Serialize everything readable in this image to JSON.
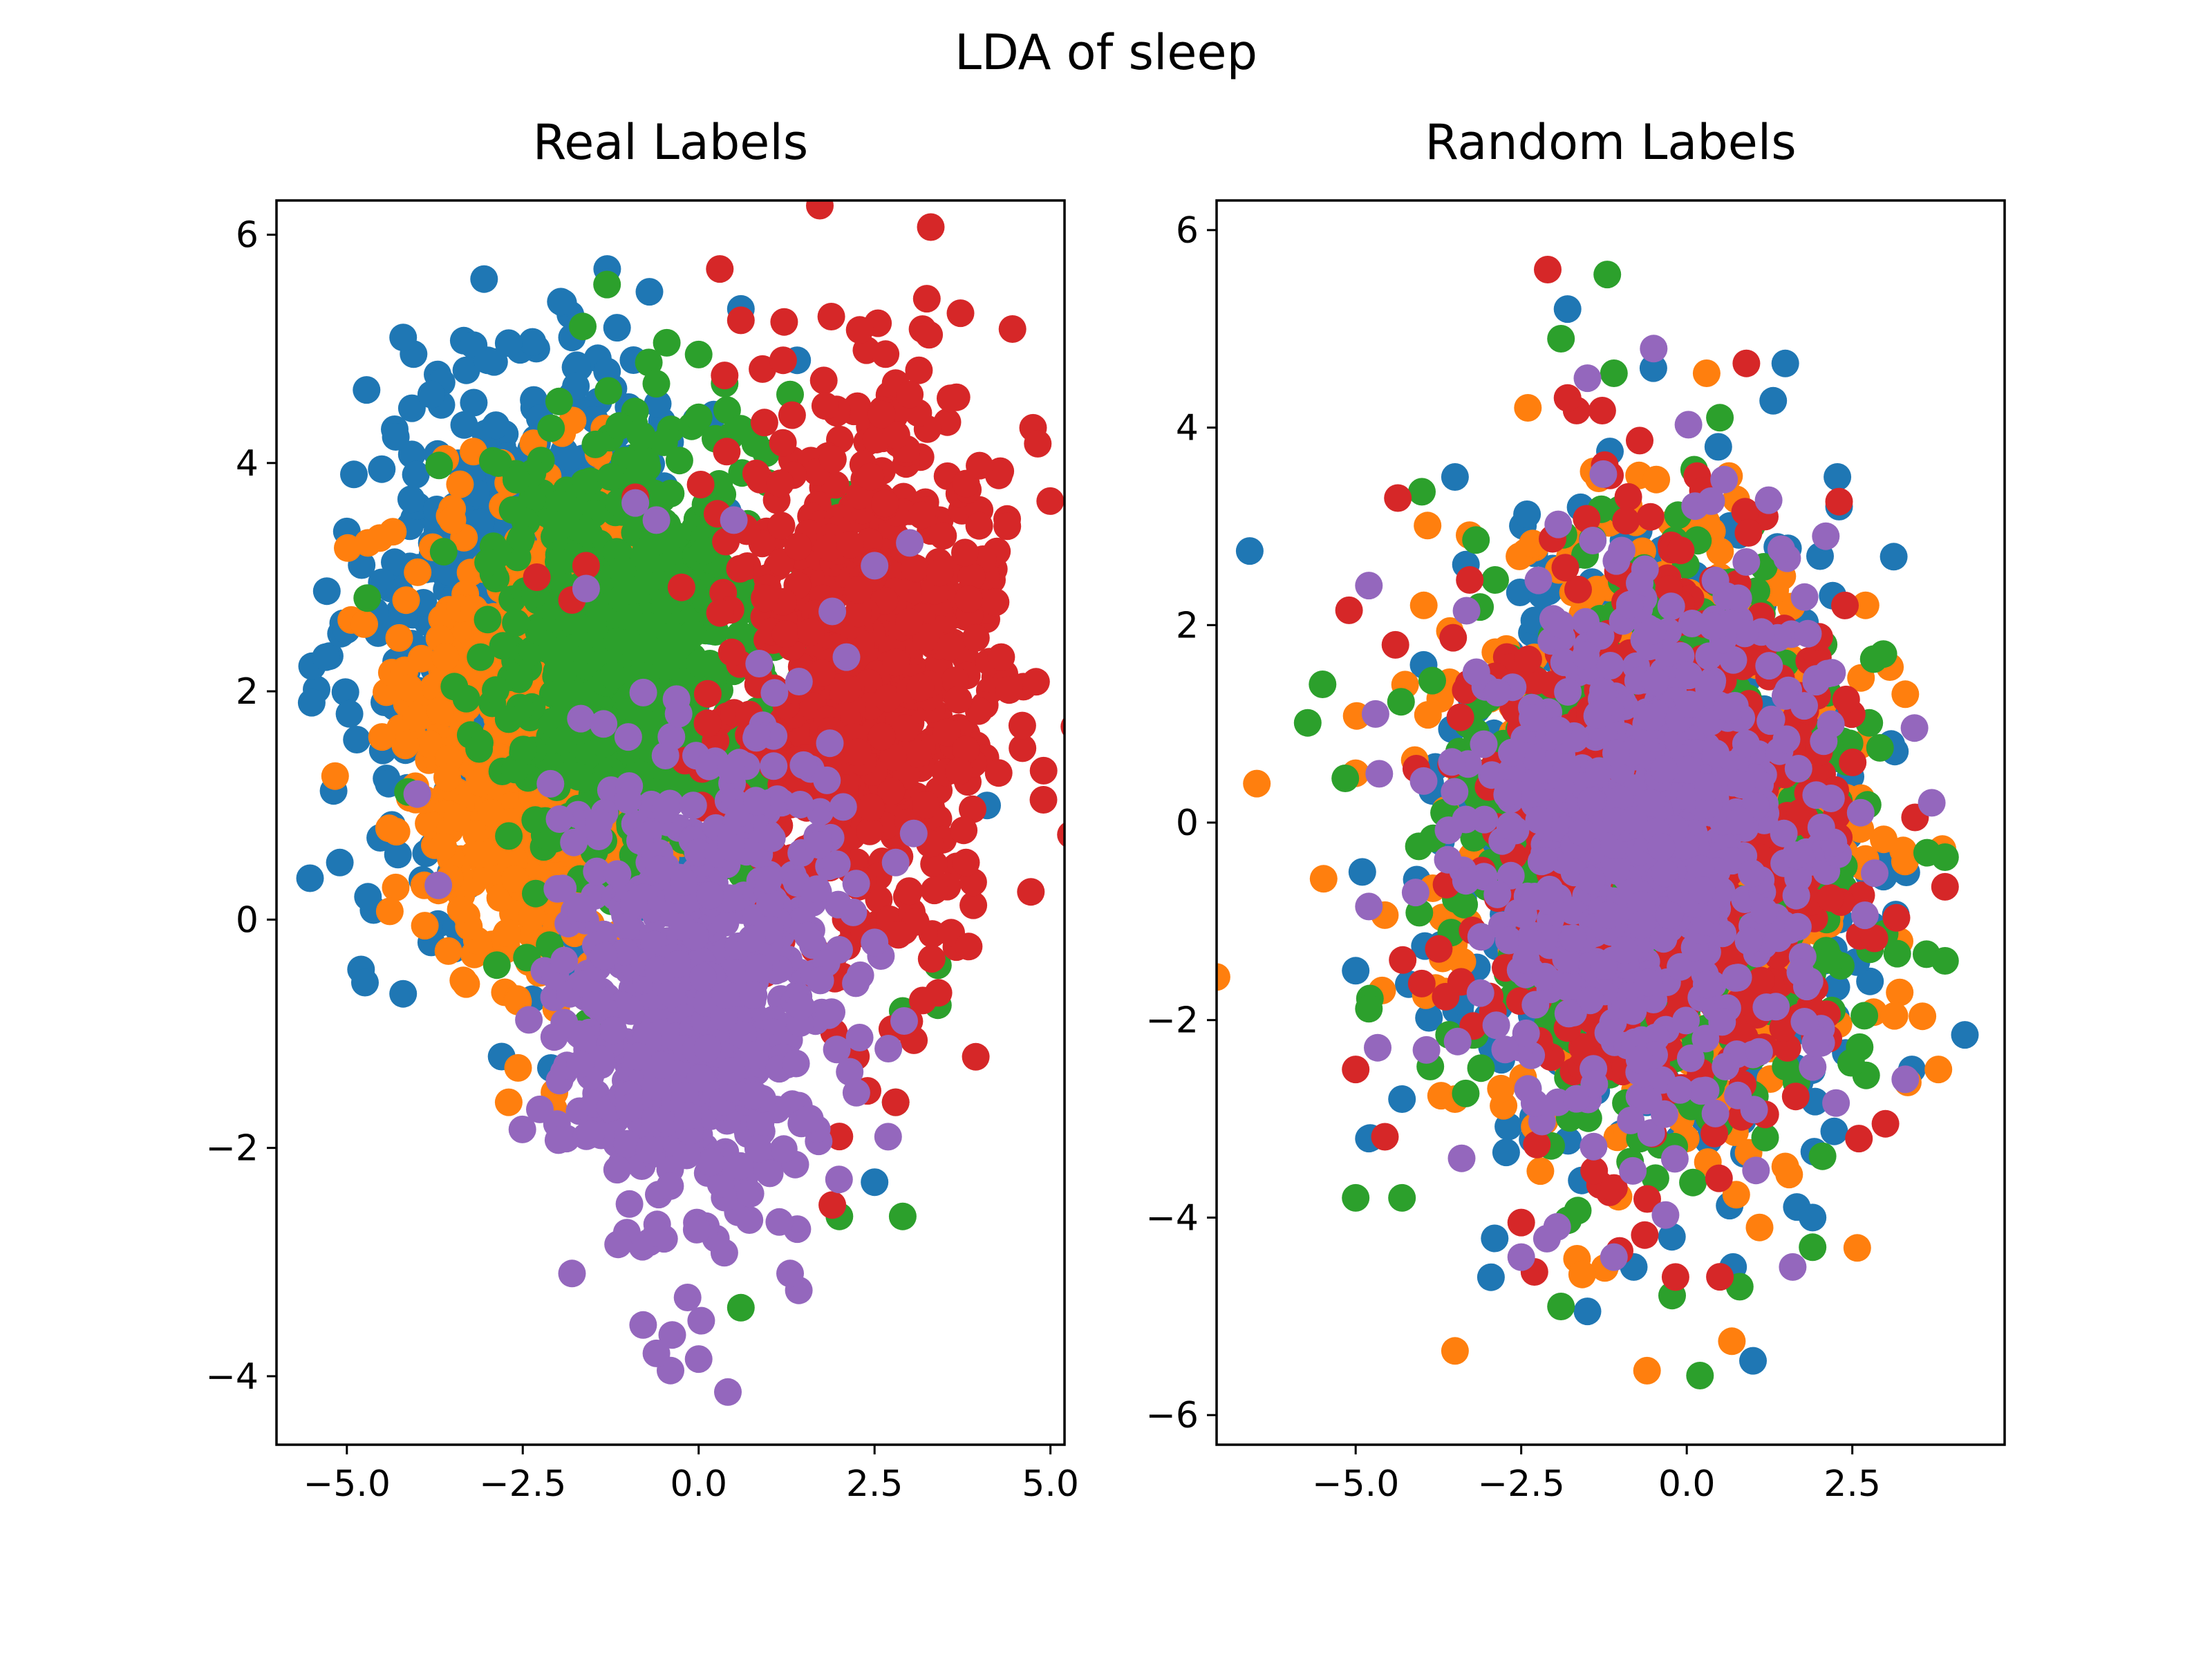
{
  "figure": {
    "suptitle": "LDA of sleep",
    "colors": [
      "#1f77b4",
      "#ff7f0e",
      "#2ca02c",
      "#d62728",
      "#9467bd"
    ]
  },
  "chart_data": [
    {
      "type": "scatter",
      "title": "Real Labels",
      "xlabel": "",
      "ylabel": "",
      "xlim": [
        -6.0,
        5.2
      ],
      "ylim": [
        -4.6,
        6.3
      ],
      "xticks": [
        -5.0,
        -2.5,
        0.0,
        2.5,
        5.0
      ],
      "xtick_labels": [
        "−5.0",
        "−2.5",
        "0.0",
        "2.5",
        "5.0"
      ],
      "yticks": [
        -4,
        -2,
        0,
        2,
        4,
        6
      ],
      "ytick_labels": [
        "−4",
        "−2",
        "0",
        "2",
        "4",
        "6"
      ],
      "grid": false,
      "legend": "none",
      "series": [
        {
          "color": "#1f77b4",
          "cluster": {
            "cx": -2.4,
            "cy": 2.6,
            "sx": 1.2,
            "sy": 1.1
          },
          "points": [
            [
              -1.3,
              5.7
            ],
            [
              -4.2,
              5.1
            ],
            [
              -0.7,
              5.5
            ],
            [
              -5.5,
              1.9
            ],
            [
              -4.2,
              -0.65
            ],
            [
              0.6,
              5.35
            ],
            [
              -3.0,
              4.9
            ],
            [
              -2.7,
              5.05
            ],
            [
              -1.8,
              5.1
            ],
            [
              -5.0,
              3.4
            ],
            [
              -4.6,
              2.7
            ],
            [
              -3.4,
              1.5
            ],
            [
              2.5,
              -2.3
            ],
            [
              4.1,
              1.0
            ],
            [
              -2.1,
              -1.3
            ],
            [
              -2.3,
              -0.1
            ],
            [
              1.4,
              4.9
            ],
            [
              -4.9,
              3.9
            ],
            [
              -3.8,
              4.6
            ],
            [
              -5.3,
              2.3
            ],
            [
              -5.1,
              0.5
            ],
            [
              -4.7,
              0.2
            ],
            [
              -3.8,
              -0.2
            ],
            [
              -2.8,
              -1.2
            ]
          ]
        },
        {
          "color": "#ff7f0e",
          "cluster": {
            "cx": -2.3,
            "cy": 1.7,
            "sx": 0.9,
            "sy": 1.0
          },
          "points": [
            [
              -4.7,
              3.3
            ],
            [
              -3.2,
              4.1
            ],
            [
              -2.8,
              4.0
            ],
            [
              -3.5,
              3.5
            ],
            [
              -4.4,
              0.8
            ],
            [
              -4.5,
              1.6
            ],
            [
              -2.7,
              -1.6
            ],
            [
              -3.9,
              0.3
            ],
            [
              -3.1,
              1.2
            ],
            [
              -2.3,
              3.2
            ],
            [
              -3.6,
              2.3
            ]
          ]
        },
        {
          "color": "#2ca02c",
          "cluster": {
            "cx": -1.0,
            "cy": 2.3,
            "sx": 1.0,
            "sy": 1.0
          },
          "points": [
            [
              0.0,
              4.95
            ],
            [
              0.0,
              4.4
            ],
            [
              0.6,
              4.3
            ],
            [
              1.3,
              4.6
            ],
            [
              2.9,
              -0.8
            ],
            [
              3.4,
              -0.4
            ],
            [
              3.4,
              -0.75
            ],
            [
              2.9,
              -2.6
            ],
            [
              2.0,
              -2.6
            ],
            [
              0.6,
              -3.4
            ],
            [
              2.0,
              3.7
            ],
            [
              -2.6,
              2.6
            ],
            [
              -1.6,
              3.4
            ],
            [
              -3.1,
              2.3
            ],
            [
              2.8,
              -1.6
            ]
          ]
        },
        {
          "color": "#d62728",
          "cluster": {
            "cx": 2.4,
            "cy": 2.2,
            "sx": 1.0,
            "sy": 1.3
          },
          "points": [
            [
              0.3,
              5.7
            ],
            [
              0.6,
              5.25
            ],
            [
              1.2,
              4.9
            ],
            [
              2.8,
              4.7
            ],
            [
              3.0,
              4.6
            ],
            [
              4.3,
              2.3
            ],
            [
              4.6,
              1.7
            ],
            [
              4.9,
              1.05
            ],
            [
              3.8,
              0.5
            ],
            [
              2.8,
              -1.6
            ],
            [
              2.0,
              -1.9
            ],
            [
              2.4,
              -1.5
            ],
            [
              1.9,
              -2.5
            ],
            [
              3.7,
              1.3
            ],
            [
              1.8,
              4.5
            ],
            [
              -1.8,
              2.8
            ],
            [
              -2.3,
              3.0
            ],
            [
              -1.6,
              3.1
            ],
            [
              -0.9,
              3.7
            ],
            [
              0.4,
              4.1
            ]
          ]
        },
        {
          "color": "#9467bd",
          "cluster": {
            "cx": 0.0,
            "cy": -0.7,
            "sx": 1.0,
            "sy": 1.0
          },
          "points": [
            [
              -0.4,
              -3.95
            ],
            [
              0.0,
              -3.85
            ],
            [
              -0.6,
              -3.8
            ],
            [
              1.3,
              -3.1
            ],
            [
              -1.8,
              -3.1
            ],
            [
              -1.6,
              2.9
            ],
            [
              -0.6,
              3.5
            ],
            [
              0.5,
              3.5
            ],
            [
              2.5,
              3.1
            ],
            [
              3.0,
              3.3
            ],
            [
              1.9,
              2.7
            ],
            [
              -4.0,
              1.1
            ],
            [
              -3.7,
              0.3
            ],
            [
              -1.0,
              1.6
            ],
            [
              2.5,
              -0.2
            ],
            [
              2.8,
              0.5
            ],
            [
              -0.9,
              3.65
            ],
            [
              2.1,
              2.3
            ]
          ]
        }
      ]
    },
    {
      "type": "scatter",
      "title": "Random Labels",
      "xlabel": "",
      "ylabel": "",
      "xlim": [
        -7.1,
        4.8
      ],
      "ylim": [
        -6.3,
        6.3
      ],
      "xticks": [
        -5.0,
        -2.5,
        0.0,
        2.5
      ],
      "xtick_labels": [
        "−5.0",
        "−2.5",
        "0.0",
        "2.5"
      ],
      "yticks": [
        -6,
        -4,
        -2,
        0,
        2,
        4,
        6
      ],
      "ytick_labels": [
        "−6",
        "−4",
        "−2",
        "0",
        "2",
        "4",
        "6"
      ],
      "grid": false,
      "legend": "none",
      "series": [
        {
          "color": "#1f77b4",
          "cluster": {
            "cx": -0.5,
            "cy": -0.2,
            "sx": 1.5,
            "sy": 1.5
          },
          "points": [
            [
              -6.6,
              2.75
            ],
            [
              -1.8,
              5.2
            ],
            [
              1.0,
              -5.45
            ],
            [
              4.2,
              -2.15
            ],
            [
              -4.8,
              -3.2
            ],
            [
              -5.0,
              -1.5
            ],
            [
              -4.3,
              -2.8
            ],
            [
              1.9,
              -4.0
            ],
            [
              2.3,
              3.2
            ],
            [
              -3.5,
              3.5
            ],
            [
              -0.8,
              -4.5
            ],
            [
              0.7,
              -4.5
            ],
            [
              -4.9,
              -0.5
            ],
            [
              3.4,
              -2.5
            ],
            [
              -1.5,
              -4.95
            ]
          ]
        },
        {
          "color": "#ff7f0e",
          "cluster": {
            "cx": -0.5,
            "cy": -0.2,
            "sx": 1.5,
            "sy": 1.5
          },
          "points": [
            [
              -3.5,
              -5.35
            ],
            [
              -0.6,
              -5.55
            ],
            [
              0.3,
              4.55
            ],
            [
              1.1,
              -4.1
            ],
            [
              3.8,
              -2.5
            ],
            [
              -2.4,
              4.2
            ],
            [
              -5.0,
              0.5
            ],
            [
              -3.5,
              -2.8
            ],
            [
              2.7,
              2.2
            ],
            [
              3.3,
              1.3
            ],
            [
              -4.6,
              -1.7
            ]
          ]
        },
        {
          "color": "#2ca02c",
          "cluster": {
            "cx": -0.5,
            "cy": -0.2,
            "sx": 1.5,
            "sy": 1.5
          },
          "points": [
            [
              -1.2,
              5.55
            ],
            [
              -1.9,
              4.9
            ],
            [
              -1.1,
              4.55
            ],
            [
              -5.5,
              1.4
            ],
            [
              -5.0,
              -3.8
            ],
            [
              -4.3,
              -3.8
            ],
            [
              0.2,
              -5.6
            ],
            [
              0.8,
              -4.7
            ],
            [
              -1.9,
              -4.9
            ],
            [
              1.9,
              -4.3
            ],
            [
              3.9,
              -0.35
            ],
            [
              3.9,
              -1.4
            ],
            [
              0.5,
              4.1
            ],
            [
              -4.0,
              3.35
            ]
          ]
        },
        {
          "color": "#d62728",
          "cluster": {
            "cx": -0.5,
            "cy": -0.2,
            "sx": 1.4,
            "sy": 1.4
          },
          "points": [
            [
              -2.1,
              5.6
            ],
            [
              0.9,
              4.65
            ],
            [
              0.5,
              -4.6
            ],
            [
              2.3,
              3.25
            ],
            [
              3.0,
              -3.05
            ],
            [
              2.6,
              -3.2
            ],
            [
              -5.1,
              2.15
            ],
            [
              -4.4,
              1.8
            ],
            [
              -2.5,
              -4.05
            ],
            [
              -1.8,
              4.3
            ],
            [
              3.9,
              -0.65
            ],
            [
              -5.0,
              -2.5
            ],
            [
              -1.1,
              -3.7
            ],
            [
              -2.3,
              -4.55
            ]
          ]
        },
        {
          "color": "#9467bd",
          "cluster": {
            "cx": -0.5,
            "cy": -0.3,
            "sx": 1.35,
            "sy": 1.35
          },
          "points": [
            [
              -0.5,
              4.8
            ],
            [
              -2.5,
              -4.4
            ],
            [
              -1.1,
              -4.4
            ],
            [
              1.6,
              -4.5
            ],
            [
              -4.8,
              2.4
            ],
            [
              -4.8,
              -0.85
            ],
            [
              -3.4,
              -3.4
            ],
            [
              3.7,
              0.2
            ],
            [
              3.3,
              -2.6
            ],
            [
              -1.5,
              4.5
            ],
            [
              2.1,
              2.9
            ],
            [
              -4.7,
              1.1
            ]
          ]
        }
      ]
    }
  ]
}
